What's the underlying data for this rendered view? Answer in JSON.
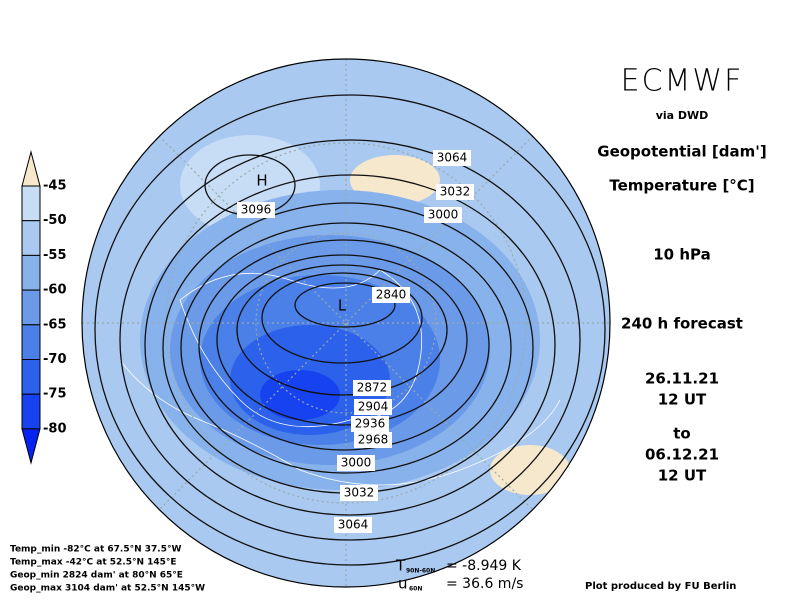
{
  "header": {
    "title": "ECMWF",
    "source": "via DWD",
    "field1": "Geopotential [dam']",
    "field2": "Temperature [°C]",
    "level": "10 hPa",
    "forecast": "240 h forecast",
    "init_date": "26.11.21",
    "init_time": "12 UT",
    "to": "to",
    "valid_date": "06.12.21",
    "valid_time": "12 UT"
  },
  "colorbar": {
    "labels": [
      "-45",
      "-50",
      "-55",
      "-60",
      "-65",
      "-70",
      "-75",
      "-80"
    ],
    "colors": [
      "#f6e8cc",
      "#c7ddf6",
      "#a9c9f1",
      "#88b2ec",
      "#6a9ae8",
      "#4b80e8",
      "#2c62eb",
      "#1742f0",
      "#0422f2"
    ]
  },
  "map": {
    "contour_labels": [
      "3064",
      "3032",
      "3000",
      "2840",
      "2872",
      "2904",
      "2936",
      "2968",
      "3000",
      "3032",
      "3064",
      "3096"
    ],
    "markers": [
      "H",
      "L"
    ]
  },
  "stats": [
    "Temp_min -82°C at 67.5°N 37.5°W",
    "Temp_max -42°C at 52.5°N 145°E",
    "Geop_min 2824 dam' at 80°N 65°E",
    "Geop_max 3104 dam' at 52.5°N 145°W"
  ],
  "indices": [
    {
      "symbol": "T",
      "sub": "90N-60N",
      "text": "= -8.949 K"
    },
    {
      "symbol": "u",
      "sub": "60N",
      "text": "= 36.6 m/s"
    }
  ],
  "credit": "Plot produced by FU Berlin"
}
